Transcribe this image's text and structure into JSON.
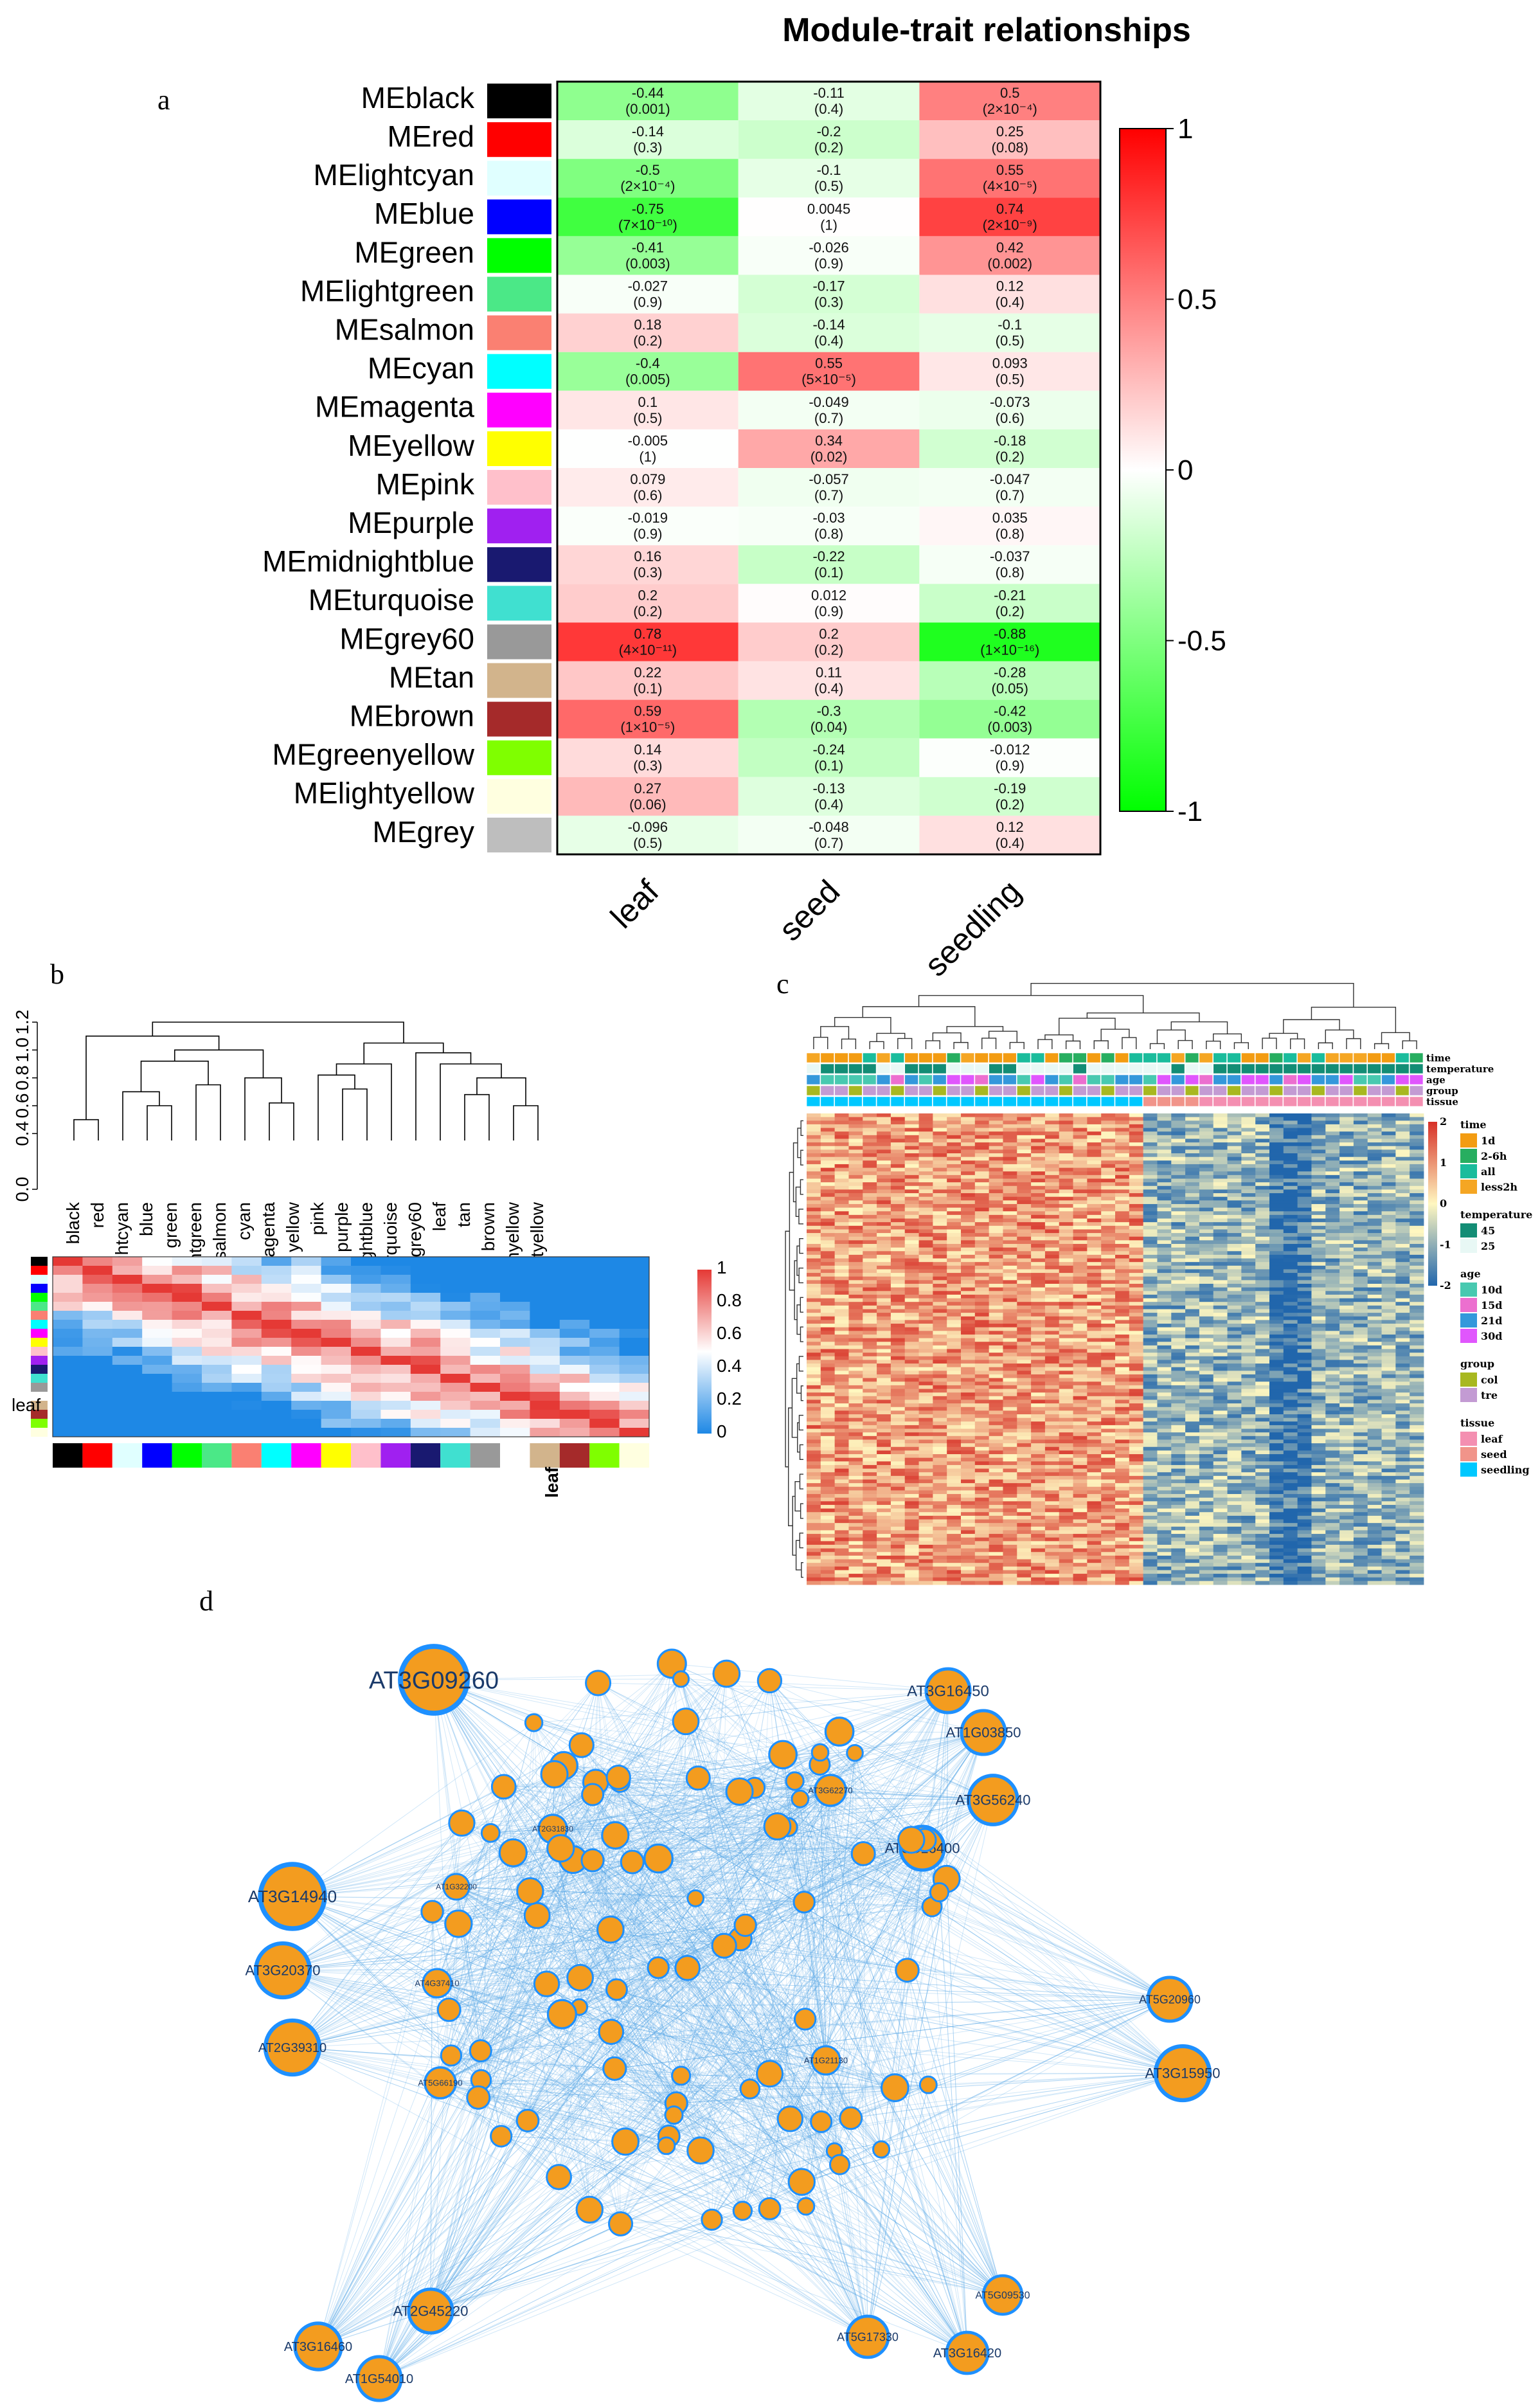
{
  "panel_labels": {
    "a": "a",
    "b": "b",
    "c": "c",
    "d": "d"
  },
  "chart_data": [
    {
      "type": "heatmap",
      "panel": "a",
      "title": "Module-trait relationships",
      "rows": [
        "MEblack",
        "MEred",
        "MElightcyan",
        "MEblue",
        "MEgreen",
        "MElightgreen",
        "MEsalmon",
        "MEcyan",
        "MEmagenta",
        "MEyellow",
        "MEpink",
        "MEpurple",
        "MEmidnightblue",
        "MEturquoise",
        "MEgrey60",
        "MEtan",
        "MEbrown",
        "MEgreenyellow",
        "MElightyellow",
        "MEgrey"
      ],
      "row_colors": [
        "#000000",
        "#ff0000",
        "#e0ffff",
        "#0000ff",
        "#00ff00",
        "#4be887",
        "#fa8072",
        "#00ffff",
        "#ff00ff",
        "#ffff00",
        "#ffc0cb",
        "#a020f0",
        "#191970",
        "#40e0d0",
        "#999999",
        "#d2b48c",
        "#a52a2a",
        "#7fff00",
        "#ffffe0",
        "#bebebe"
      ],
      "columns": [
        "leaf",
        "seed",
        "seedling"
      ],
      "values": [
        [
          -0.44,
          -0.11,
          0.5
        ],
        [
          -0.14,
          -0.2,
          0.25
        ],
        [
          -0.5,
          -0.1,
          0.55
        ],
        [
          -0.75,
          0.0045,
          0.74
        ],
        [
          -0.41,
          -0.026,
          0.42
        ],
        [
          -0.027,
          -0.17,
          0.12
        ],
        [
          0.18,
          -0.14,
          -0.1
        ],
        [
          -0.4,
          0.55,
          0.093
        ],
        [
          0.1,
          -0.049,
          -0.073
        ],
        [
          -0.005,
          0.34,
          -0.18
        ],
        [
          0.079,
          -0.057,
          -0.047
        ],
        [
          -0.019,
          -0.03,
          0.035
        ],
        [
          0.16,
          -0.22,
          -0.037
        ],
        [
          0.2,
          0.012,
          -0.21
        ],
        [
          0.78,
          0.2,
          -0.88
        ],
        [
          0.22,
          0.11,
          -0.28
        ],
        [
          0.59,
          -0.3,
          -0.42
        ],
        [
          0.14,
          -0.24,
          -0.012
        ],
        [
          0.27,
          -0.13,
          -0.19
        ],
        [
          -0.096,
          -0.048,
          0.12
        ]
      ],
      "r_labels": [
        [
          "-0.44",
          "-0.11",
          "0.5"
        ],
        [
          "-0.14",
          "-0.2",
          "0.25"
        ],
        [
          "-0.5",
          "-0.1",
          "0.55"
        ],
        [
          "-0.75",
          "0.0045",
          "0.74"
        ],
        [
          "-0.41",
          "-0.026",
          "0.42"
        ],
        [
          "-0.027",
          "-0.17",
          "0.12"
        ],
        [
          "0.18",
          "-0.14",
          "-0.1"
        ],
        [
          "-0.4",
          "0.55",
          "0.093"
        ],
        [
          "0.1",
          "-0.049",
          "-0.073"
        ],
        [
          "-0.005",
          "0.34",
          "-0.18"
        ],
        [
          "0.079",
          "-0.057",
          "-0.047"
        ],
        [
          "-0.019",
          "-0.03",
          "0.035"
        ],
        [
          "0.16",
          "-0.22",
          "-0.037"
        ],
        [
          "0.2",
          "0.012",
          "-0.21"
        ],
        [
          "0.78",
          "0.2",
          "-0.88"
        ],
        [
          "0.22",
          "0.11",
          "-0.28"
        ],
        [
          "0.59",
          "-0.3",
          "-0.42"
        ],
        [
          "0.14",
          "-0.24",
          "-0.012"
        ],
        [
          "0.27",
          "-0.13",
          "-0.19"
        ],
        [
          "-0.096",
          "-0.048",
          "0.12"
        ]
      ],
      "p_labels": [
        [
          "(0.001)",
          "(0.4)",
          "(2×10⁻⁴)"
        ],
        [
          "(0.3)",
          "(0.2)",
          "(0.08)"
        ],
        [
          "(2×10⁻⁴)",
          "(0.5)",
          "(4×10⁻⁵)"
        ],
        [
          "(7×10⁻¹⁰)",
          "(1)",
          "(2×10⁻⁹)"
        ],
        [
          "(0.003)",
          "(0.9)",
          "(0.002)"
        ],
        [
          "(0.9)",
          "(0.3)",
          "(0.4)"
        ],
        [
          "(0.2)",
          "(0.4)",
          "(0.5)"
        ],
        [
          "(0.005)",
          "(5×10⁻⁵)",
          "(0.5)"
        ],
        [
          "(0.5)",
          "(0.7)",
          "(0.6)"
        ],
        [
          "(1)",
          "(0.02)",
          "(0.2)"
        ],
        [
          "(0.6)",
          "(0.7)",
          "(0.7)"
        ],
        [
          "(0.9)",
          "(0.8)",
          "(0.8)"
        ],
        [
          "(0.3)",
          "(0.1)",
          "(0.8)"
        ],
        [
          "(0.2)",
          "(0.9)",
          "(0.2)"
        ],
        [
          "(4×10⁻¹¹)",
          "(0.2)",
          "(1×10⁻¹⁶)"
        ],
        [
          "(0.1)",
          "(0.4)",
          "(0.05)"
        ],
        [
          "(1×10⁻⁵)",
          "(0.04)",
          "(0.003)"
        ],
        [
          "(0.3)",
          "(0.1)",
          "(0.9)"
        ],
        [
          "(0.06)",
          "(0.4)",
          "(0.2)"
        ],
        [
          "(0.5)",
          "(0.7)",
          "(0.4)"
        ]
      ],
      "colorbar_ticks": [
        "1",
        "0.5",
        "0",
        "-0.5",
        "-1"
      ],
      "colorbar_values": [
        1,
        0.5,
        0,
        -0.5,
        -1
      ],
      "colorbar_range": [
        -1,
        1
      ],
      "colorbar_colors": [
        "#00ff00",
        "#ffffff",
        "#ff0000"
      ]
    },
    {
      "type": "heatmap",
      "panel": "b",
      "subtype": "eigengene adjacency dendrogram",
      "y_ticks": [
        "1.2",
        "1.0",
        "0.8",
        "0.6",
        "0.4",
        "0.0"
      ],
      "leaves": [
        "black",
        "red",
        "lightcyan",
        "blue",
        "green",
        "lightgreen",
        "salmon",
        "cyan",
        "magenta",
        "yellow",
        "pink",
        "purple",
        "midnightblue",
        "turquoise",
        "grey60",
        "leaf",
        "tan",
        "brown",
        "greenyellow",
        "lightyellow"
      ],
      "leaf_colors": [
        "#000000",
        "#ff0000",
        "#e0ffff",
        "#0000ff",
        "#00ff00",
        "#4be887",
        "#fa8072",
        "#00ffff",
        "#ff00ff",
        "#ffff00",
        "#ffc0cb",
        "#a020f0",
        "#191970",
        "#40e0d0",
        "#999999",
        "#ffffff",
        "#d2b48c",
        "#a52a2a",
        "#7fff00",
        "#ffffe0"
      ],
      "side_label": "leaf",
      "bottom_label": "leaf",
      "colorbar_ticks": [
        "1",
        "0.8",
        "0.6",
        "0.4",
        "0.2",
        "0"
      ],
      "colorbar_values": [
        1,
        0.8,
        0.6,
        0.4,
        0.2,
        0
      ],
      "colorbar_colors": [
        "#1e88e5",
        "#ffffff",
        "#e53935"
      ]
    },
    {
      "type": "heatmap",
      "panel": "c",
      "annotation_tracks": [
        "time",
        "temperature",
        "age",
        "group",
        "tissue"
      ],
      "colorbar_ticks": [
        "2",
        "1",
        "0",
        "-1",
        "-2"
      ],
      "colorbar_values": [
        2,
        1,
        0,
        -1,
        -2
      ],
      "legend": [
        {
          "title": "time",
          "items": [
            {
              "label": "1d",
              "color": "#f39c12"
            },
            {
              "label": "2-6h",
              "color": "#27ae60"
            },
            {
              "label": "all",
              "color": "#1abc9c"
            },
            {
              "label": "less2h",
              "color": "#f5a623"
            }
          ]
        },
        {
          "title": "temperature",
          "items": [
            {
              "label": "45",
              "color": "#138d75"
            },
            {
              "label": "25",
              "color": "#e8f8f5"
            }
          ]
        },
        {
          "title": "age",
          "items": [
            {
              "label": "10d",
              "color": "#48c9b0"
            },
            {
              "label": "15d",
              "color": "#ec6fcf"
            },
            {
              "label": "21d",
              "color": "#3498db"
            },
            {
              "label": "30d",
              "color": "#e056fd"
            }
          ]
        },
        {
          "title": "group",
          "items": [
            {
              "label": "col",
              "color": "#a8b820"
            },
            {
              "label": "tre",
              "color": "#c39bd3"
            }
          ]
        },
        {
          "title": "tissue",
          "items": [
            {
              "label": "leaf",
              "color": "#f48fb1"
            },
            {
              "label": "seed",
              "color": "#f1948a"
            },
            {
              "label": "seedling",
              "color": "#00c8ff"
            }
          ]
        }
      ]
    },
    {
      "type": "network",
      "panel": "d",
      "hub_nodes": [
        "AT3G09260",
        "AT3G16450",
        "AT1G03850",
        "AT3G56240",
        "AT3G16400",
        "AT3G14940",
        "AT3G20370",
        "AT2G39310",
        "AT5G20960",
        "AT3G15950",
        "AT5G09530",
        "AT5G17330",
        "AT3G16420",
        "AT3G16460",
        "AT2G45220",
        "AT1G54010",
        "AT3G62270",
        "AT2G31830",
        "AT1G32200",
        "AT4G37410",
        "AT5G66190",
        "AT1G21130"
      ],
      "edge_color": "#5aa9e6",
      "node_color": "#f39c1f",
      "node_border": "#1e90ff"
    }
  ]
}
